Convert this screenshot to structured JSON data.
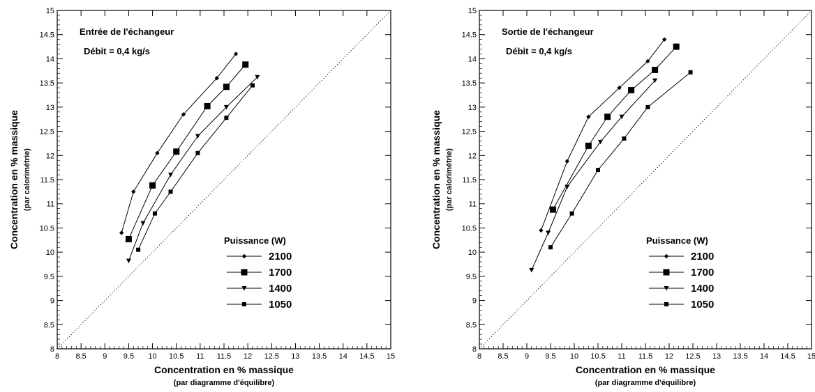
{
  "chart_data": [
    {
      "type": "line",
      "xlabel": "Concentration en % massique",
      "xlabel_sub": "(par diagramme d'équilibre)",
      "ylabel": "Concentration en % massique",
      "ylabel_sub": "(par calorimétrie)",
      "xlim": [
        8,
        15
      ],
      "ylim": [
        8,
        15
      ],
      "x_ticks": [
        "8",
        "8.5",
        "9",
        "9.5",
        "10",
        "10.5",
        "11",
        "11.5",
        "12",
        "12.5",
        "13",
        "13.5",
        "14",
        "14.5",
        "15"
      ],
      "y_ticks": [
        "8",
        "8.5",
        "9",
        "9.5",
        "10",
        "10.5",
        "11",
        "11.5",
        "12",
        "12.5",
        "13",
        "13.5",
        "14",
        "14.5",
        "15"
      ],
      "annotations": [
        "Entrée de l'échangeur",
        "Débit = 0,4 kg/s"
      ],
      "reference_line": {
        "style": "dotted",
        "x": [
          8,
          15
        ],
        "y": [
          8,
          15
        ]
      },
      "legend_title": "Puissance (W)",
      "legend_placement": "bottom-right",
      "series": [
        {
          "name": "2100",
          "marker": "diamond",
          "x": [
            9.35,
            9.6,
            10.1,
            10.65,
            11.35,
            11.75
          ],
          "y": [
            10.4,
            11.25,
            12.05,
            12.85,
            13.6,
            14.1
          ]
        },
        {
          "name": "1700",
          "marker": "square",
          "x": [
            9.5,
            10.0,
            10.5,
            11.15,
            11.55,
            11.95
          ],
          "y": [
            10.27,
            11.38,
            12.08,
            13.02,
            13.42,
            13.88
          ]
        },
        {
          "name": "1400",
          "marker": "triangle-down",
          "x": [
            9.5,
            9.8,
            10.38,
            10.95,
            11.55,
            12.2
          ],
          "y": [
            9.82,
            10.6,
            11.6,
            12.4,
            13.0,
            13.62
          ]
        },
        {
          "name": "1050",
          "marker": "small-square",
          "x": [
            9.7,
            10.05,
            10.38,
            10.95,
            11.55,
            12.1
          ],
          "y": [
            10.05,
            10.8,
            11.25,
            12.05,
            12.78,
            13.45
          ]
        }
      ]
    },
    {
      "type": "line",
      "xlabel": "Concentration en % massique",
      "xlabel_sub": "(par diagramme d'équilibre)",
      "ylabel": "Concentration en % massique",
      "ylabel_sub": "(par calorimétrie)",
      "xlim": [
        8,
        15
      ],
      "ylim": [
        8,
        15
      ],
      "x_ticks": [
        "8",
        "8.5",
        "9",
        "9.5",
        "10",
        "10.5",
        "11",
        "11.5",
        "12",
        "12.5",
        "13",
        "13.5",
        "14",
        "14.5",
        "15"
      ],
      "y_ticks": [
        "8",
        "8.5",
        "9",
        "9.5",
        "10",
        "10.5",
        "11",
        "11.5",
        "12",
        "12.5",
        "13",
        "13.5",
        "14",
        "14.5",
        "15"
      ],
      "annotations": [
        "Sortie de l'échangeur",
        "Débit = 0,4 kg/s"
      ],
      "reference_line": {
        "style": "dotted",
        "x": [
          8,
          15
        ],
        "y": [
          8,
          15
        ]
      },
      "legend_title": "Puissance (W)",
      "legend_placement": "bottom-right",
      "series": [
        {
          "name": "2100",
          "marker": "diamond",
          "x": [
            9.3,
            9.85,
            10.3,
            10.95,
            11.55,
            11.9
          ],
          "y": [
            10.45,
            11.88,
            12.8,
            13.4,
            13.95,
            14.4
          ]
        },
        {
          "name": "1700",
          "marker": "square",
          "x": [
            9.55,
            10.3,
            10.7,
            11.2,
            11.7,
            12.15
          ],
          "y": [
            10.88,
            12.2,
            12.8,
            13.35,
            13.77,
            14.25
          ]
        },
        {
          "name": "1400",
          "marker": "triangle-down",
          "x": [
            9.1,
            9.45,
            9.85,
            10.55,
            11.0,
            11.7
          ],
          "y": [
            9.63,
            10.4,
            11.35,
            12.28,
            12.8,
            13.55
          ]
        },
        {
          "name": "1050",
          "marker": "small-square",
          "x": [
            9.5,
            9.95,
            10.5,
            11.05,
            11.55,
            12.45
          ],
          "y": [
            10.1,
            10.8,
            11.7,
            12.35,
            13.0,
            13.72
          ]
        }
      ]
    }
  ]
}
